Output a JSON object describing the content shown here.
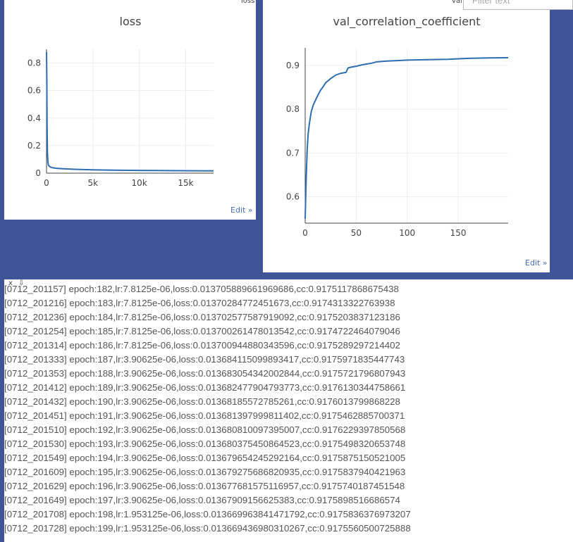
{
  "window_controls": {
    "close": "x",
    "pin": "⇩"
  },
  "filter": {
    "placeholder": "Filter text"
  },
  "panes": {
    "loss": {
      "tab_label": "loss",
      "edit_label": "Edit »"
    },
    "val": {
      "tab_label": "val",
      "edit_label": "Edit »"
    }
  },
  "log": {
    "lines": [
      "[0712_201157] epoch:182,lr:7.8125e-06,loss:0.013705889661969686,cc:0.9175117868675438",
      "[0712_201216] epoch:183,lr:7.8125e-06,loss:0.01370284772451673,cc:0.9174313322763938",
      "[0712_201236] epoch:184,lr:7.8125e-06,loss:0.013702577587919092,cc:0.9175203837123186",
      "[0712_201254] epoch:185,lr:7.8125e-06,loss:0.01370026147801354 2,cc:0.9174722464079046",
      "[0712_201314] epoch:186,lr:7.8125e-06,loss:0.013700944880343596,cc:0.9175289297214402",
      "[0712_201333] epoch:187,lr:3.90625e-06,loss:0.013684115099893417,cc:0.9175971835447743",
      "[0712_201353] epoch:188,lr:3.90625e-06,loss:0.013683054342002844,cc:0.9175721796807943",
      "[0712_201412] epoch:189,lr:3.90625e-06,loss:0.013682477904793773,cc:0.9176130344758661",
      "[0712_201432] epoch:190,lr:3.90625e-06,loss:0.013681855727852 61,cc:0.9176013799868228",
      "[0712_201451] epoch:191,lr:3.90625e-06,loss:0.013681397999811402,cc:0.917546288570 0371",
      "[0712_201510] epoch:192,lr:3.90625e-06,loss:0.013680810097395007,cc:0.9176229397850568",
      "[0712_201530] epoch:193,lr:3.90625e-06,loss:0.013680375450864523,cc:0.9175498320653748",
      "[0712_201549] epoch:194,lr:3.90625e-06,loss:0.013679654245292164,cc:0.9175875150521005",
      "[0712_201609] epoch:195,lr:3.90625e-06,loss:0.013679275686820935,cc:0.9175837940421963",
      "[0712_201629] epoch:196,lr:3.90625e-06,loss:0.013677681575116957,cc:0.9175740187451548",
      "[0712_201649] epoch:197,lr:3.90625e-06,loss:0.0136790915662538 3,cc:0.9175898516686574",
      "[0712_201708] epoch:198,lr:1.953125e-06,loss:0.013669963841471792,cc:0.9175836376973207",
      "[0712_201728] epoch:199,lr:1.953125e-06,loss:0.013669436980310267,cc:0.9175560500725888"
    ]
  },
  "chart_data": [
    {
      "type": "line",
      "title": "loss",
      "xlabel": "",
      "ylabel": "",
      "xlim": [
        0,
        18000
      ],
      "ylim": [
        0,
        0.9
      ],
      "xticks": [
        "0",
        "5k",
        "10k",
        "15k"
      ],
      "yticks": [
        "0",
        "0.2",
        "0.4",
        "0.6",
        "0.8"
      ],
      "grid": true,
      "color": "#2f6db1",
      "series": [
        {
          "x": [
            0,
            30,
            60,
            100,
            150,
            200,
            300,
            400,
            600,
            800,
            1000,
            1500,
            2000,
            3000,
            4000,
            5000,
            6000,
            8000,
            10000,
            12000,
            14000,
            16000,
            18000
          ],
          "y": [
            0.88,
            0.7,
            0.35,
            0.15,
            0.08,
            0.06,
            0.05,
            0.045,
            0.04,
            0.038,
            0.036,
            0.033,
            0.031,
            0.028,
            0.026,
            0.024,
            0.023,
            0.021,
            0.02,
            0.019,
            0.018,
            0.0175,
            0.017
          ]
        }
      ]
    },
    {
      "type": "line",
      "title": "val_correlation_coefficient",
      "xlabel": "",
      "ylabel": "",
      "xlim": [
        0,
        199
      ],
      "ylim": [
        0.54,
        0.94
      ],
      "xticks": [
        "0",
        "50",
        "100",
        "150"
      ],
      "yticks": [
        "0.6",
        "0.7",
        "0.8",
        "0.9"
      ],
      "grid": true,
      "color": "#2f6db1",
      "series": [
        {
          "x": [
            0,
            1,
            2,
            3,
            4,
            5,
            6,
            8,
            10,
            12,
            15,
            18,
            20,
            25,
            30,
            35,
            40,
            42,
            45,
            50,
            55,
            60,
            65,
            70,
            80,
            90,
            100,
            120,
            140,
            160,
            180,
            199
          ],
          "y": [
            0.55,
            0.64,
            0.71,
            0.745,
            0.765,
            0.78,
            0.795,
            0.81,
            0.82,
            0.83,
            0.843,
            0.853,
            0.86,
            0.87,
            0.878,
            0.882,
            0.884,
            0.894,
            0.896,
            0.898,
            0.901,
            0.903,
            0.905,
            0.908,
            0.91,
            0.911,
            0.912,
            0.913,
            0.914,
            0.916,
            0.917,
            0.9175
          ]
        }
      ]
    }
  ]
}
